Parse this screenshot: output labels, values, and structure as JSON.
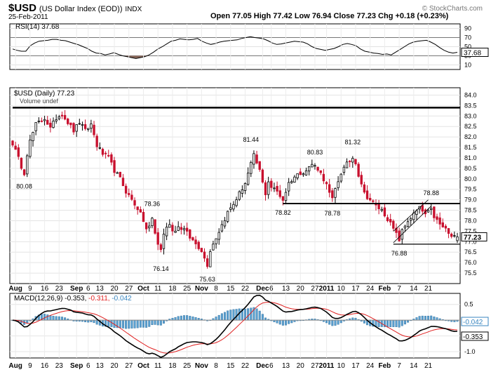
{
  "header": {
    "symbol": "$USD",
    "name": "(US Dollar Index (EOD))",
    "exchange": "INDX",
    "date": "25-Feb-2011",
    "quote": "Open 77.05  High 77.42  Low 76.94  Close 77.23  Chg +0.18 (+0.23%)",
    "watermark": "© StockCharts.com"
  },
  "rsi": {
    "legend": "RSI(14) 37.68",
    "current_label": "37.68",
    "axis_ticks": [
      "90",
      "70",
      "50",
      "30",
      "10"
    ],
    "axis_values": [
      90,
      70,
      50,
      30,
      10
    ],
    "ylim": [
      0,
      100
    ],
    "overbought": 70,
    "oversold": 30,
    "values": [
      45,
      42,
      40,
      40,
      52,
      58,
      62,
      63,
      64,
      66,
      66,
      64,
      63,
      60,
      57,
      54,
      50,
      46,
      40,
      36,
      35,
      32,
      34,
      37,
      33,
      30,
      28,
      26,
      24,
      26,
      28,
      32,
      38,
      45,
      50,
      56,
      62,
      64,
      67,
      66,
      65,
      66,
      68,
      62,
      58,
      55,
      57,
      60,
      62,
      63,
      64,
      65,
      68,
      70,
      72,
      70,
      69,
      67,
      63,
      58,
      55,
      56,
      58,
      60,
      62,
      61,
      60,
      56,
      50,
      46,
      44,
      42,
      44,
      46,
      50,
      55,
      57,
      55,
      52,
      45,
      40,
      38,
      36,
      35,
      33,
      34,
      32,
      38,
      44,
      50,
      56,
      60,
      62,
      63,
      64,
      60,
      55,
      48,
      42,
      38,
      36,
      37.68
    ]
  },
  "price": {
    "legend": "$USD (Daily) 77.23",
    "volume_legend": "Volume undef",
    "current_label": "77.23",
    "axis_ticks": [
      "84.0",
      "83.5",
      "83.0",
      "82.5",
      "82.0",
      "81.5",
      "81.0",
      "80.5",
      "80.0",
      "79.5",
      "79.0",
      "78.5",
      "78.0",
      "77.5",
      "77.0",
      "76.5",
      "76.0",
      "75.5"
    ],
    "axis_values": [
      84.0,
      83.5,
      83.0,
      82.5,
      82.0,
      81.5,
      81.0,
      80.5,
      80.0,
      79.5,
      79.0,
      78.5,
      78.0,
      77.5,
      77.0,
      76.5,
      76.0,
      75.5
    ],
    "ylim": [
      75.0,
      84.35
    ],
    "annotations": [
      {
        "text": "80.08",
        "index": 4,
        "value": 80.08,
        "pos": "below"
      },
      {
        "text": "78.36",
        "index": 48,
        "value": 78.36,
        "pos": "above"
      },
      {
        "text": "76.14",
        "index": 51,
        "value": 76.14,
        "pos": "below"
      },
      {
        "text": "75.63",
        "index": 67,
        "value": 75.63,
        "pos": "below"
      },
      {
        "text": "81.44",
        "index": 82,
        "value": 81.44,
        "pos": "above"
      },
      {
        "text": "78.82",
        "index": 93,
        "value": 78.82,
        "pos": "below"
      },
      {
        "text": "80.83",
        "index": 104,
        "value": 80.83,
        "pos": "above"
      },
      {
        "text": "78.78",
        "index": 110,
        "value": 78.78,
        "pos": "below"
      },
      {
        "text": "81.32",
        "index": 117,
        "value": 81.32,
        "pos": "above"
      },
      {
        "text": "76.88",
        "index": 133,
        "value": 76.88,
        "pos": "below"
      },
      {
        "text": "78.88",
        "index": 144,
        "value": 78.88,
        "pos": "above"
      }
    ],
    "hlines": [
      {
        "value": 83.4,
        "from_index": 0,
        "to_index": 153
      },
      {
        "value": 78.82,
        "from_index": 93,
        "to_index": 153
      },
      {
        "value": 76.88,
        "from_index": 131,
        "to_index": 153
      }
    ],
    "channel": [
      {
        "from": [
          131,
          76.95
        ],
        "to": [
          144,
          78.7
        ]
      },
      {
        "from": [
          131,
          77.5
        ],
        "to": [
          143,
          79.0
        ]
      }
    ]
  },
  "macd": {
    "legend_main": "MACD(12,26,9) -0.353,",
    "legend_signal": "-0.311,",
    "legend_hist": "-0.042",
    "label_hist": "-0.042",
    "label_macd": "-0.353",
    "axis_ticks": [
      "0.5",
      "0.0",
      "-0.5",
      "-1.0"
    ],
    "axis_values": [
      0.5,
      0.0,
      -0.5,
      -1.0
    ],
    "ylim": [
      -1.2,
      0.85
    ],
    "colors": {
      "macd": "#000000",
      "signal": "#e02020",
      "hist": "#5aa0d0"
    }
  },
  "x_axis": {
    "labels": [
      {
        "text": "Aug",
        "index": 1,
        "bold": true
      },
      {
        "text": "9",
        "index": 6,
        "bold": false
      },
      {
        "text": "16",
        "index": 11,
        "bold": false
      },
      {
        "text": "23",
        "index": 16,
        "bold": false
      },
      {
        "text": "Sep",
        "index": 22,
        "bold": true
      },
      {
        "text": "6",
        "index": 26,
        "bold": false
      },
      {
        "text": "13",
        "index": 30,
        "bold": false
      },
      {
        "text": "20",
        "index": 35,
        "bold": false
      },
      {
        "text": "27",
        "index": 40,
        "bold": false
      },
      {
        "text": "Oct",
        "index": 45,
        "bold": true
      },
      {
        "text": "11",
        "index": 50,
        "bold": false
      },
      {
        "text": "18",
        "index": 55,
        "bold": false
      },
      {
        "text": "25",
        "index": 60,
        "bold": false
      },
      {
        "text": "Nov",
        "index": 65,
        "bold": true
      },
      {
        "text": "8",
        "index": 70,
        "bold": false
      },
      {
        "text": "15",
        "index": 75,
        "bold": false
      },
      {
        "text": "22",
        "index": 80,
        "bold": false
      },
      {
        "text": "Dec",
        "index": 86,
        "bold": true
      },
      {
        "text": "6",
        "index": 89,
        "bold": false
      },
      {
        "text": "13",
        "index": 94,
        "bold": false
      },
      {
        "text": "20",
        "index": 99,
        "bold": false
      },
      {
        "text": "27",
        "index": 104,
        "bold": false
      },
      {
        "text": "2011",
        "index": 108,
        "bold": true
      },
      {
        "text": "10",
        "index": 113,
        "bold": false
      },
      {
        "text": "17",
        "index": 118,
        "bold": false
      },
      {
        "text": "24",
        "index": 123,
        "bold": false
      },
      {
        "text": "Feb",
        "index": 128,
        "bold": true
      },
      {
        "text": "7",
        "index": 133,
        "bold": false
      },
      {
        "text": "14",
        "index": 138,
        "bold": false
      },
      {
        "text": "21",
        "index": 143,
        "bold": false
      }
    ]
  },
  "chart_data": {
    "type": "candlestick",
    "title": "$USD (US Dollar Index (EOD)) INDX",
    "ylim": [
      75.0,
      84.35
    ],
    "hlines": [
      83.4,
      78.82,
      76.88
    ],
    "labeled_points": [
      {
        "label": "80.08",
        "value": 80.08
      },
      {
        "label": "78.36",
        "value": 78.36
      },
      {
        "label": "76.14",
        "value": 76.14
      },
      {
        "label": "75.63",
        "value": 75.63
      },
      {
        "label": "81.44",
        "value": 81.44
      },
      {
        "label": "78.82",
        "value": 78.82
      },
      {
        "label": "80.83",
        "value": 80.83
      },
      {
        "label": "78.78",
        "value": 78.78
      },
      {
        "label": "81.32",
        "value": 81.32
      },
      {
        "label": "76.88",
        "value": 76.88
      },
      {
        "label": "78.88",
        "value": 78.88
      }
    ],
    "close_anchors": [
      [
        0,
        81.7
      ],
      [
        3,
        80.6
      ],
      [
        4,
        80.3
      ],
      [
        5,
        81.2
      ],
      [
        6,
        81.8
      ],
      [
        8,
        82.6
      ],
      [
        11,
        82.9
      ],
      [
        13,
        82.4
      ],
      [
        15,
        82.9
      ],
      [
        17,
        83.1
      ],
      [
        19,
        82.7
      ],
      [
        21,
        82.3
      ],
      [
        23,
        82.7
      ],
      [
        25,
        82.3
      ],
      [
        27,
        82.6
      ],
      [
        29,
        81.6
      ],
      [
        31,
        81.2
      ],
      [
        33,
        81.0
      ],
      [
        35,
        80.4
      ],
      [
        37,
        80.0
      ],
      [
        39,
        79.4
      ],
      [
        41,
        79.0
      ],
      [
        43,
        78.6
      ],
      [
        45,
        78.0
      ],
      [
        46,
        77.6
      ],
      [
        47,
        77.7
      ],
      [
        48,
        78.1
      ],
      [
        49,
        77.4
      ],
      [
        50,
        76.9
      ],
      [
        51,
        76.6
      ],
      [
        52,
        77.4
      ],
      [
        54,
        77.9
      ],
      [
        55,
        77.5
      ],
      [
        57,
        77.7
      ],
      [
        59,
        77.6
      ],
      [
        61,
        77.2
      ],
      [
        63,
        76.9
      ],
      [
        65,
        76.6
      ],
      [
        66,
        76.2
      ],
      [
        67,
        75.9
      ],
      [
        68,
        76.6
      ],
      [
        70,
        77.2
      ],
      [
        72,
        77.8
      ],
      [
        74,
        78.4
      ],
      [
        76,
        78.8
      ],
      [
        78,
        79.3
      ],
      [
        80,
        79.8
      ],
      [
        82,
        80.7
      ],
      [
        83,
        81.1
      ],
      [
        85,
        80.4
      ],
      [
        86,
        79.8
      ],
      [
        87,
        79.3
      ],
      [
        88,
        79.9
      ],
      [
        89,
        79.6
      ],
      [
        91,
        79.4
      ],
      [
        93,
        79.0
      ],
      [
        95,
        79.8
      ],
      [
        97,
        80.1
      ],
      [
        99,
        80.3
      ],
      [
        101,
        80.4
      ],
      [
        103,
        80.7
      ],
      [
        105,
        80.5
      ],
      [
        107,
        80.0
      ],
      [
        108,
        79.7
      ],
      [
        109,
        79.3
      ],
      [
        110,
        79.0
      ],
      [
        111,
        79.5
      ],
      [
        113,
        80.3
      ],
      [
        115,
        80.7
      ],
      [
        117,
        81.0
      ],
      [
        118,
        80.8
      ],
      [
        119,
        80.2
      ],
      [
        120,
        79.8
      ],
      [
        121,
        79.3
      ],
      [
        123,
        79.0
      ],
      [
        125,
        78.7
      ],
      [
        127,
        78.5
      ],
      [
        129,
        78.1
      ],
      [
        131,
        77.6
      ],
      [
        133,
        77.1
      ],
      [
        134,
        77.5
      ],
      [
        136,
        78.0
      ],
      [
        138,
        78.3
      ],
      [
        140,
        78.6
      ],
      [
        142,
        78.3
      ],
      [
        144,
        78.5
      ],
      [
        145,
        78.2
      ],
      [
        147,
        77.8
      ],
      [
        149,
        77.6
      ],
      [
        151,
        77.2
      ],
      [
        153,
        77.23
      ]
    ],
    "last": {
      "open": 77.05,
      "high": 77.42,
      "low": 76.94,
      "close": 77.23
    },
    "indicators": [
      "RSI(14) 37.68",
      "MACD(12,26,9) -0.353, -0.311, -0.042"
    ]
  }
}
